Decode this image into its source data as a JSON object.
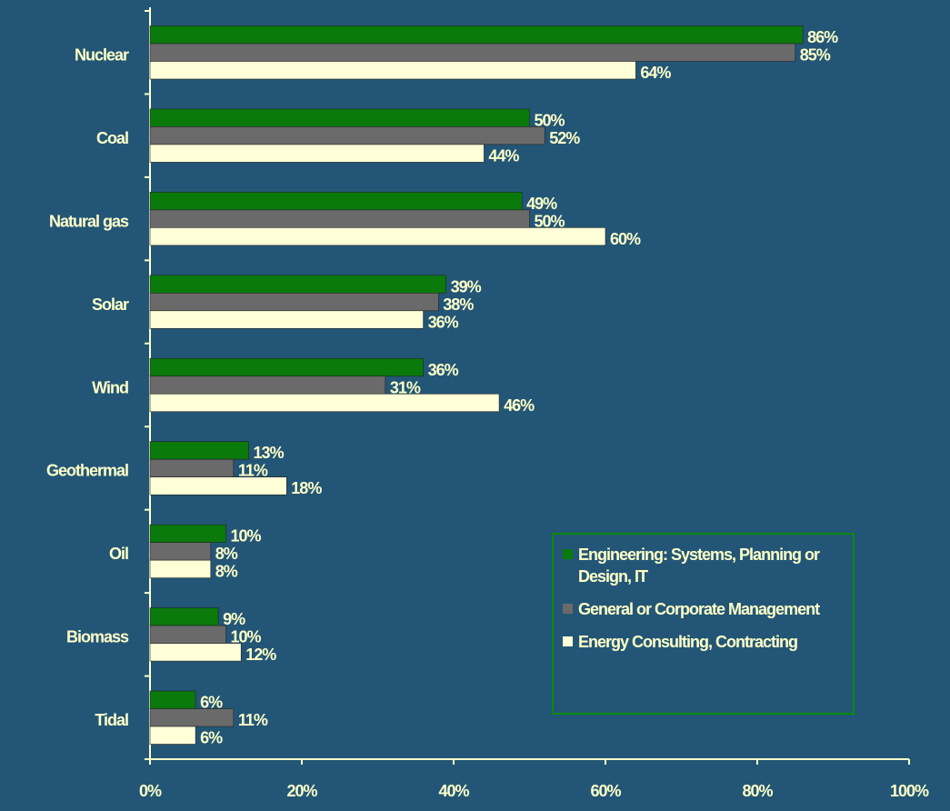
{
  "chart_data": {
    "type": "bar",
    "orientation": "horizontal",
    "categories": [
      "Nuclear",
      "Coal",
      "Natural gas",
      "Solar",
      "Wind",
      "Geothermal",
      "Oil",
      "Biomass",
      "Tidal"
    ],
    "series": [
      {
        "name": "Engineering: Systems, Planning or Design, IT",
        "color": "#0a7a0a",
        "values": [
          86,
          50,
          49,
          39,
          36,
          13,
          10,
          9,
          6
        ],
        "value_labels": [
          "86%",
          "50%",
          "49%",
          "39%",
          "36%",
          "13%",
          "10%",
          "9%",
          "6%"
        ]
      },
      {
        "name": "General or Corporate Management",
        "color": "#6a6a6a",
        "values": [
          85,
          52,
          50,
          38,
          31,
          11,
          8,
          10,
          11
        ],
        "value_labels": [
          "85%",
          "52%",
          "50%",
          "38%",
          "31%",
          "11%",
          "8%",
          "10%",
          "11%"
        ]
      },
      {
        "name": "Energy Consulting, Contracting",
        "color": "#ffffd8",
        "values": [
          64,
          44,
          60,
          36,
          46,
          18,
          8,
          12,
          6
        ],
        "value_labels": [
          "64%",
          "44%",
          "60%",
          "36%",
          "46%",
          "18%",
          "8%",
          "12%",
          "6%"
        ]
      }
    ],
    "xlim": [
      0,
      100
    ],
    "xticks": [
      {
        "value": 0,
        "label": "0%"
      },
      {
        "value": 20,
        "label": "20%"
      },
      {
        "value": 40,
        "label": "40%"
      },
      {
        "value": 60,
        "label": "60%"
      },
      {
        "value": 80,
        "label": "80%"
      },
      {
        "value": 100,
        "label": "100%"
      }
    ],
    "legend": "lower right"
  }
}
